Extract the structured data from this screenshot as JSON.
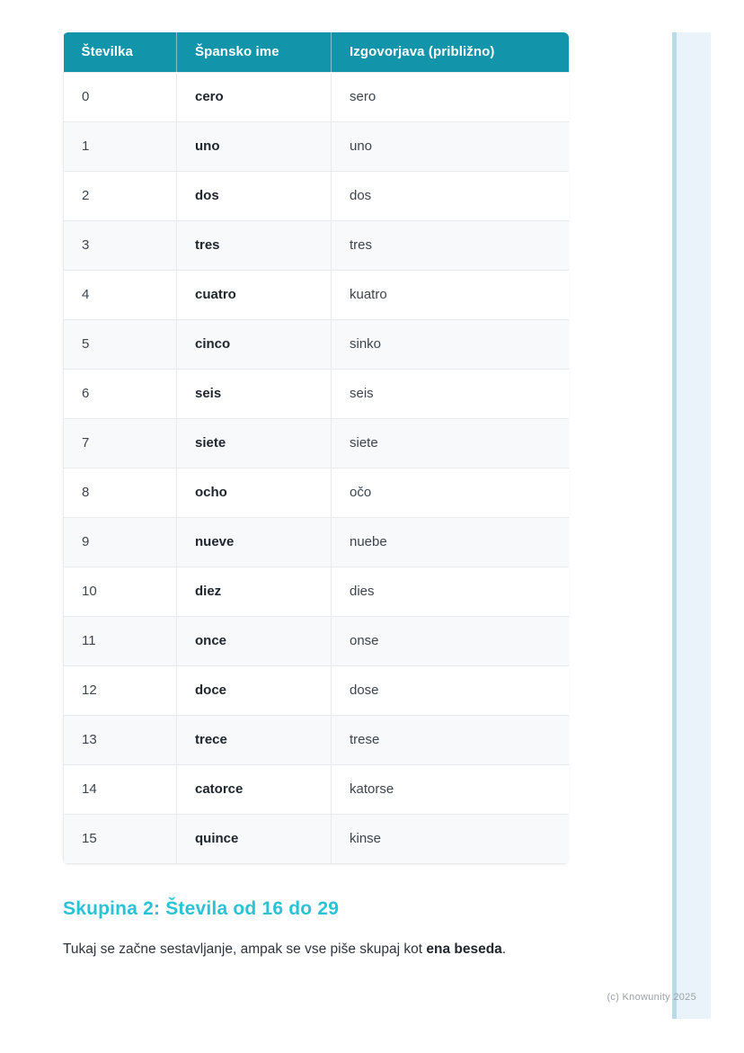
{
  "table": {
    "columns": [
      "Številka",
      "Špansko ime",
      "Izgovorjava (približno)"
    ],
    "rows": [
      {
        "number": "0",
        "spanish": "cero",
        "pronunciation": "sero"
      },
      {
        "number": "1",
        "spanish": "uno",
        "pronunciation": "uno"
      },
      {
        "number": "2",
        "spanish": "dos",
        "pronunciation": "dos"
      },
      {
        "number": "3",
        "spanish": "tres",
        "pronunciation": "tres"
      },
      {
        "number": "4",
        "spanish": "cuatro",
        "pronunciation": "kuatro"
      },
      {
        "number": "5",
        "spanish": "cinco",
        "pronunciation": "sinko"
      },
      {
        "number": "6",
        "spanish": "seis",
        "pronunciation": "seis"
      },
      {
        "number": "7",
        "spanish": "siete",
        "pronunciation": "siete"
      },
      {
        "number": "8",
        "spanish": "ocho",
        "pronunciation": "očo"
      },
      {
        "number": "9",
        "spanish": "nueve",
        "pronunciation": "nuebe"
      },
      {
        "number": "10",
        "spanish": "diez",
        "pronunciation": "dies"
      },
      {
        "number": "11",
        "spanish": "once",
        "pronunciation": "onse"
      },
      {
        "number": "12",
        "spanish": "doce",
        "pronunciation": "dose"
      },
      {
        "number": "13",
        "spanish": "trece",
        "pronunciation": "trese"
      },
      {
        "number": "14",
        "spanish": "catorce",
        "pronunciation": "katorse"
      },
      {
        "number": "15",
        "spanish": "quince",
        "pronunciation": "kinse"
      }
    ]
  },
  "section": {
    "heading": "Skupina 2: Števila od 16 do 29",
    "paragraph_prefix": "Tukaj se začne sestavljanje, ampak se vse piše skupaj kot ",
    "paragraph_bold": "ena beseda",
    "paragraph_suffix": "."
  },
  "footer": {
    "copyright": "(c) Knowunity 2025"
  },
  "colors": {
    "header_bg": "#1295ab",
    "heading_text": "#2bc2d6",
    "row_stripe": "#f7f9fa",
    "stripe_fill": "#e9f3f9",
    "stripe_edge": "#b7dce5"
  }
}
